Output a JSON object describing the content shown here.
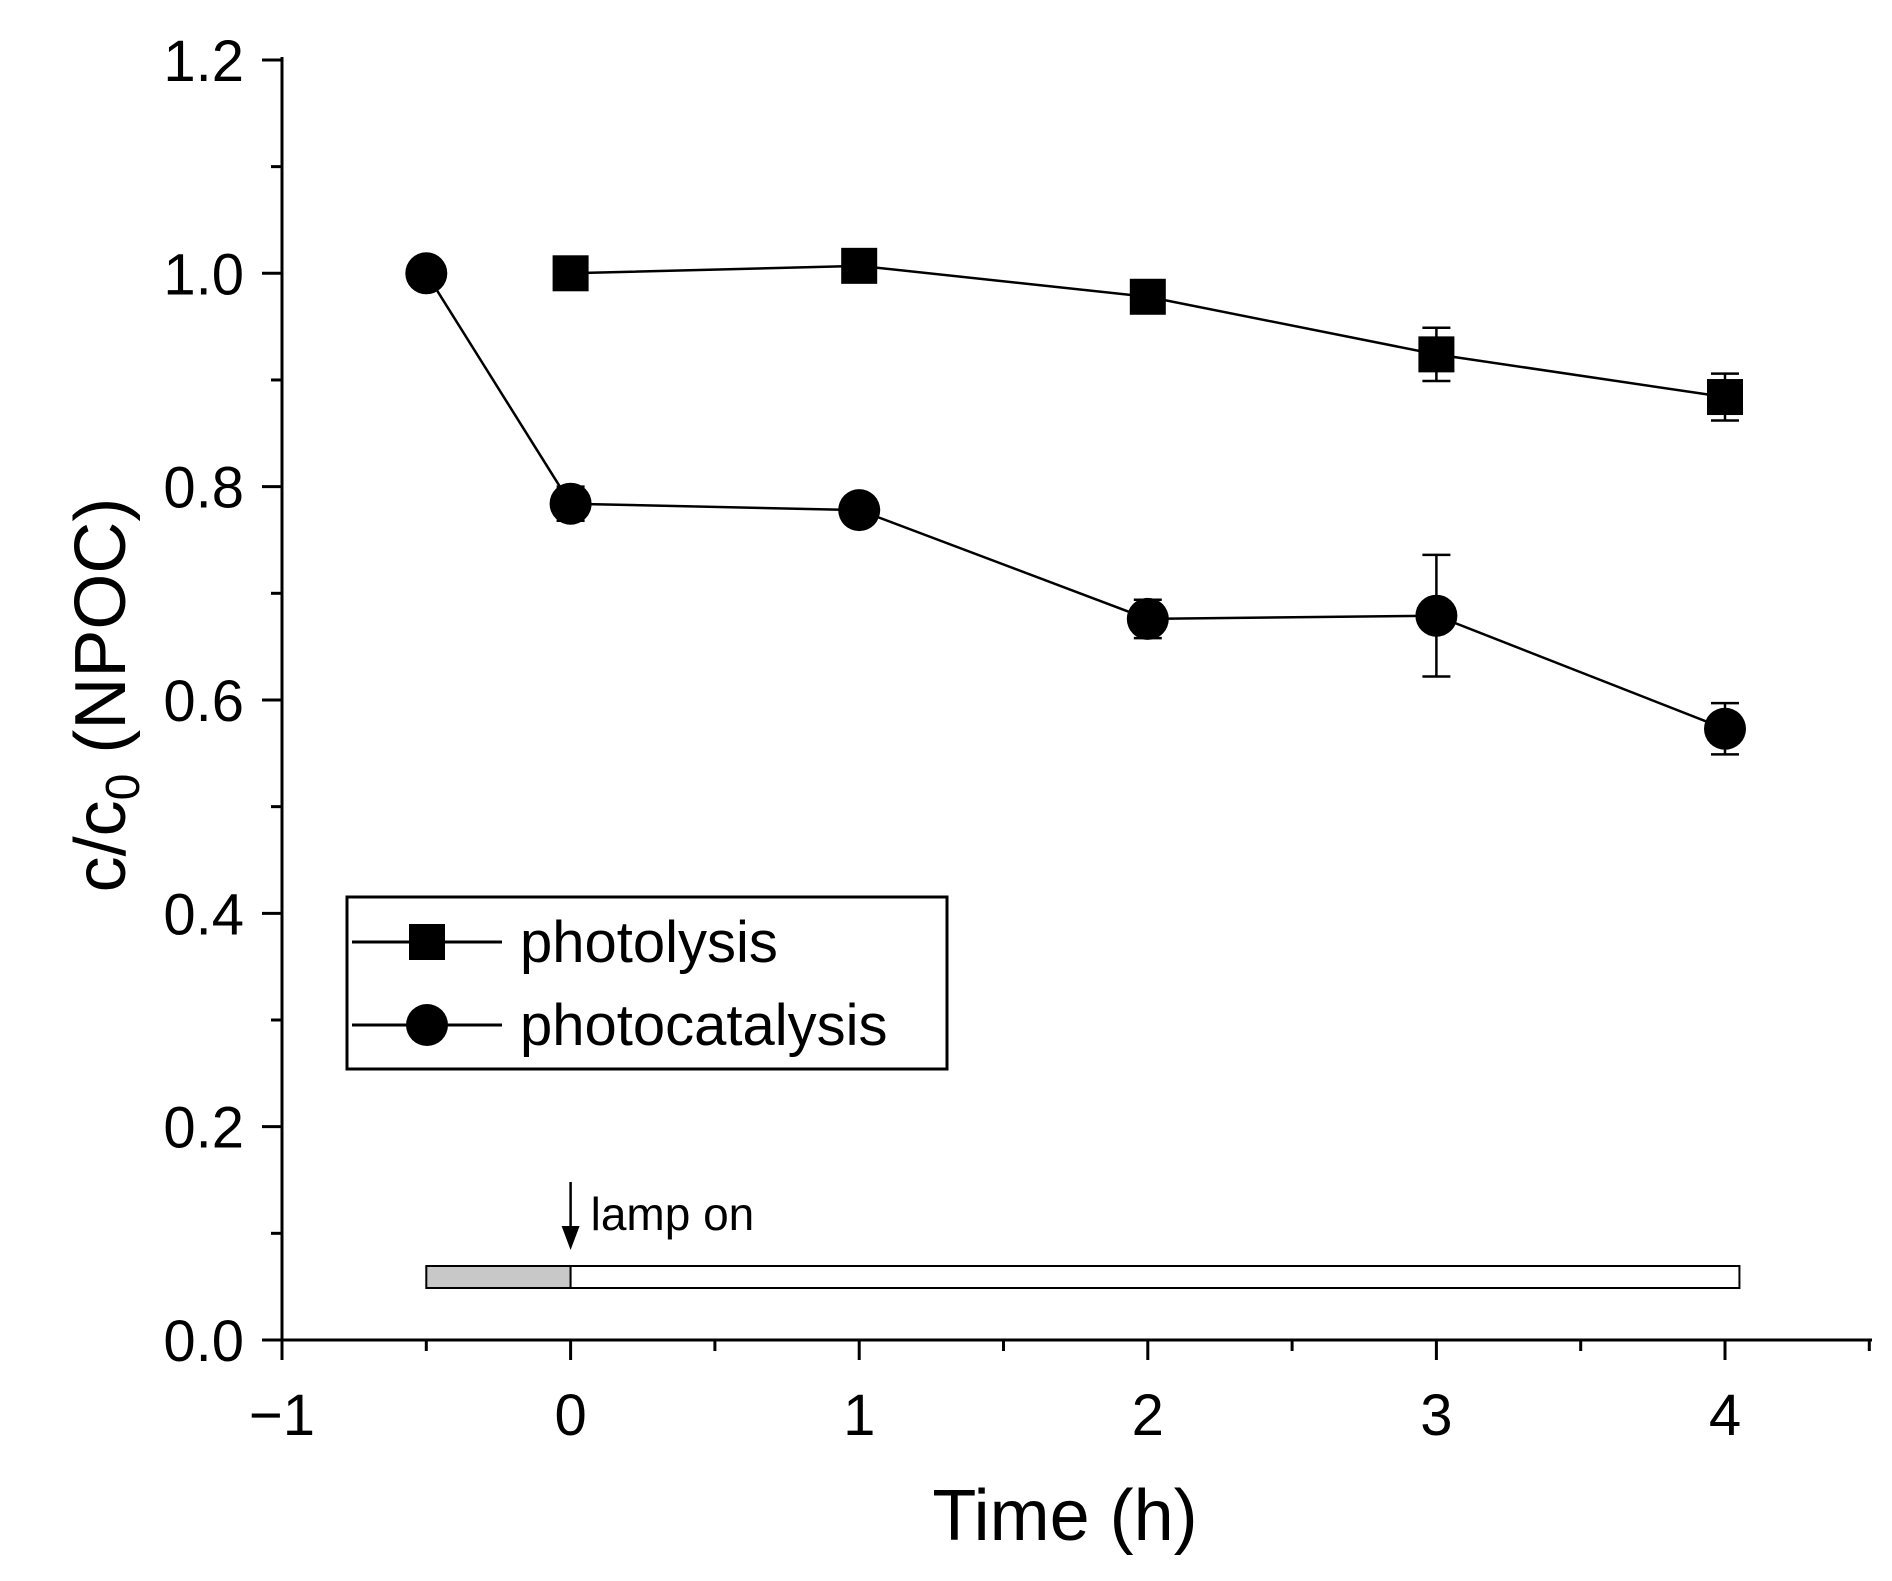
{
  "chart_data": {
    "type": "line",
    "title": "",
    "xlabel": "Time (h)",
    "ylabel_main": "c/c",
    "ylabel_sub": "0",
    "ylabel_tail": " (NPOC)",
    "xlim": [
      -1,
      4.5
    ],
    "ylim": [
      0.0,
      1.2
    ],
    "x_ticks": [
      -1,
      0,
      1,
      2,
      3,
      4
    ],
    "x_tick_labels": [
      "−1",
      "0",
      "1",
      "2",
      "3",
      "4"
    ],
    "y_ticks": [
      0.0,
      0.2,
      0.4,
      0.6,
      0.8,
      1.0,
      1.2
    ],
    "y_tick_labels": [
      "0.0",
      "0.2",
      "0.4",
      "0.6",
      "0.8",
      "1.0",
      "1.2"
    ],
    "grid": false,
    "legend_position": "lower-left",
    "series": [
      {
        "name": "photolysis",
        "marker": "square",
        "color": "#000000",
        "x": [
          0,
          1,
          2,
          3,
          4
        ],
        "y": [
          1.0,
          1.007,
          0.978,
          0.924,
          0.884
        ],
        "err": [
          0.0,
          0.006,
          0.01,
          0.025,
          0.022
        ]
      },
      {
        "name": "photocatalysis",
        "marker": "circle",
        "color": "#000000",
        "x": [
          -0.5,
          0,
          1,
          2,
          3,
          4
        ],
        "y": [
          1.0,
          0.784,
          0.778,
          0.676,
          0.679,
          0.573
        ],
        "err": [
          0.0,
          0.016,
          0.013,
          0.018,
          0.057,
          0.024
        ]
      }
    ],
    "annotations": {
      "lamp_label": "lamp on",
      "lamp_x": 0,
      "dark_period": [
        -0.5,
        0
      ],
      "light_period": [
        0,
        4.05
      ],
      "dark_color": "#c8c8c8",
      "light_color": "#ffffff"
    }
  }
}
